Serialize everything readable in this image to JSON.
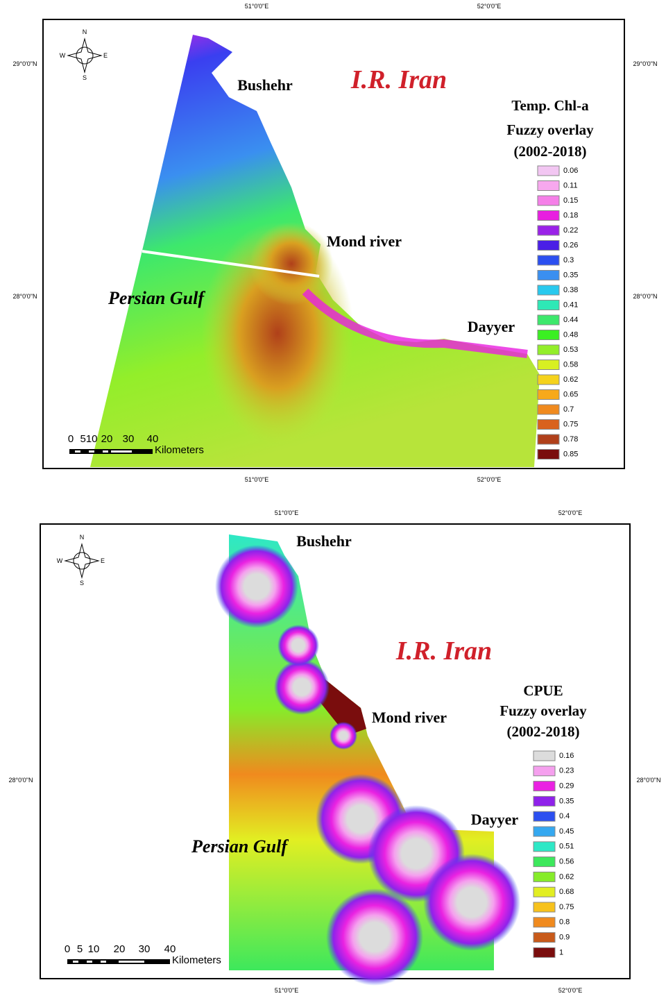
{
  "maps": [
    {
      "coords": {
        "top": [
          "51°0'0\"E",
          "52°0'0\"E"
        ],
        "bottom": [
          "51°0'0\"E",
          "52°0'0\"E"
        ],
        "left": [
          "29°0'0\"N",
          "28°0'0\"N"
        ],
        "right": [
          "29°0'0\"N",
          "28°0'0\"N"
        ]
      },
      "compass": [
        "N",
        "S",
        "W",
        "E"
      ],
      "places": [
        "Bushehr",
        "I.R. Iran",
        "Mond river",
        "Persian Gulf",
        "Dayyer"
      ],
      "legend": {
        "title": [
          "Temp. Chl-a",
          "Fuzzy overlay",
          "(2002-2018)"
        ],
        "items": [
          {
            "label": "0.06",
            "color": "#f2c6f2"
          },
          {
            "label": "0.11",
            "color": "#f7a8ee"
          },
          {
            "label": "0.15",
            "color": "#f57fe8"
          },
          {
            "label": "0.18",
            "color": "#e81fe0"
          },
          {
            "label": "0.22",
            "color": "#9a22e8"
          },
          {
            "label": "0.26",
            "color": "#4a1fe6"
          },
          {
            "label": "0.3",
            "color": "#2b4ff0"
          },
          {
            "label": "0.35",
            "color": "#3a8ff0"
          },
          {
            "label": "0.38",
            "color": "#29c9ee"
          },
          {
            "label": "0.41",
            "color": "#2ee8b6"
          },
          {
            "label": "0.44",
            "color": "#3de86c"
          },
          {
            "label": "0.48",
            "color": "#3bef22"
          },
          {
            "label": "0.53",
            "color": "#93ee2a"
          },
          {
            "label": "0.58",
            "color": "#d8ef22"
          },
          {
            "label": "0.62",
            "color": "#f5d21c"
          },
          {
            "label": "0.65",
            "color": "#f7a91a"
          },
          {
            "label": "0.7",
            "color": "#f08a1e"
          },
          {
            "label": "0.75",
            "color": "#d9621d"
          },
          {
            "label": "0.78",
            "color": "#b0401a"
          },
          {
            "label": "0.85",
            "color": "#7a0d0d"
          }
        ]
      },
      "scale": {
        "labels": [
          "0",
          "510",
          "20",
          "30",
          "40"
        ],
        "unit": "Kilometers"
      }
    },
    {
      "coords": {
        "top": [
          "51°0'0\"E",
          "52°0'0\"E"
        ],
        "bottom": [
          "51°0'0\"E",
          "52°0'0\"E"
        ],
        "left": [
          "28°0'0\"N"
        ],
        "right": [
          "28°0'0\"N"
        ]
      },
      "compass": [
        "N",
        "S",
        "W",
        "E"
      ],
      "places": [
        "Bushehr",
        "I.R. Iran",
        "Mond river",
        "Persian Gulf",
        "Dayyer"
      ],
      "legend": {
        "title": [
          "CPUE",
          "Fuzzy overlay",
          "(2002-2018)"
        ],
        "items": [
          {
            "label": "0.16",
            "color": "#dcdcdc"
          },
          {
            "label": "0.23",
            "color": "#f5a0ee"
          },
          {
            "label": "0.29",
            "color": "#ea22e2"
          },
          {
            "label": "0.35",
            "color": "#8f22ea"
          },
          {
            "label": "0.4",
            "color": "#2b4ff0"
          },
          {
            "label": "0.45",
            "color": "#35a8f0"
          },
          {
            "label": "0.51",
            "color": "#2ee8c6"
          },
          {
            "label": "0.56",
            "color": "#3de85c"
          },
          {
            "label": "0.62",
            "color": "#86ec2a"
          },
          {
            "label": "0.68",
            "color": "#e2ee22"
          },
          {
            "label": "0.75",
            "color": "#f7c21c"
          },
          {
            "label": "0.8",
            "color": "#f08a1e"
          },
          {
            "label": "0.9",
            "color": "#c85a1a"
          },
          {
            "label": "1",
            "color": "#7a0d0d"
          }
        ]
      },
      "scale": {
        "labels": [
          "0",
          "5",
          "10",
          "20",
          "30",
          "40"
        ],
        "unit": "Kilometers"
      }
    }
  ]
}
